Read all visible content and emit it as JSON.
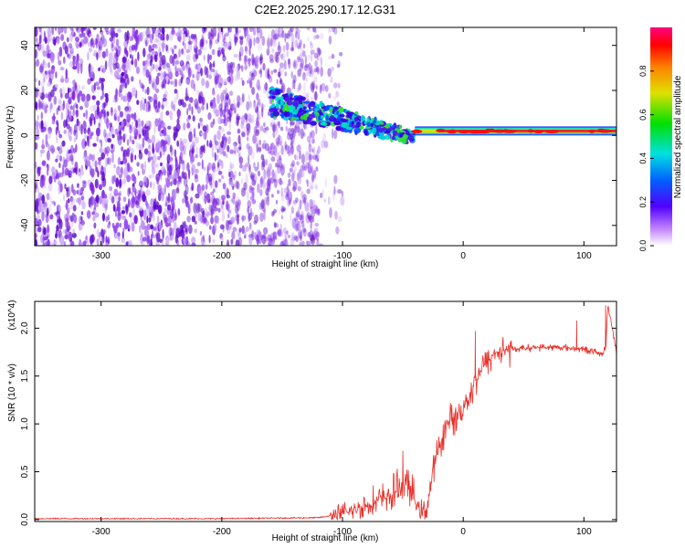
{
  "figure_title": "C2E2.2025.290.17.12.G31",
  "colors": {
    "snr_line": "#e8302a",
    "spectro_noise": "#7a1fe0",
    "axis": "#000000"
  },
  "chart_data": [
    {
      "type": "heatmap",
      "name": "spectrogram",
      "xlabel": "Height of straight line (km)",
      "ylabel": "Frequency (Hz)",
      "xlim": [
        -355,
        127
      ],
      "ylim": [
        -49,
        48
      ],
      "xticks": [
        -300,
        -200,
        -100,
        0,
        100
      ],
      "xtick_labels": [
        "-300",
        "-200",
        "-100",
        "0",
        "100"
      ],
      "yticks": [
        -40,
        -20,
        0,
        20,
        40
      ],
      "ytick_labels": [
        "-40",
        "-20",
        "0",
        "20",
        "40"
      ],
      "colorbar": {
        "label": "Normalized spectral amplitude",
        "range": [
          0,
          1
        ],
        "ticks": [
          0.0,
          0.2,
          0.4,
          0.6,
          0.8
        ],
        "tick_labels": [
          "0.0",
          "0.2",
          "0.4",
          "0.6",
          "0.8"
        ],
        "colormap": "rainbow (white-violet-blue-cyan-green-yellow-red-magenta)"
      },
      "features": [
        {
          "label": "broadband noise",
          "x_range": [
            -355,
            -120
          ],
          "freq_range": [
            -49,
            48
          ],
          "amplitude": 0.15
        },
        {
          "label": "scattered band",
          "x_range": [
            -160,
            -40
          ],
          "freq_center": [
            15,
            8,
            2,
            -2
          ],
          "amplitude": 0.4
        },
        {
          "label": "carrier line",
          "x_range": [
            -40,
            127
          ],
          "freq_center": 2,
          "amplitude": 0.95
        }
      ]
    },
    {
      "type": "line",
      "name": "snr",
      "xlabel": "Height of straight line (km)",
      "ylabel": "SNR (10 * v/v)",
      "y_multiplier": "(x10^4)",
      "xlim": [
        -355,
        127
      ],
      "ylim": [
        -0.02,
        2.28
      ],
      "xticks": [
        -300,
        -200,
        -100,
        0,
        100
      ],
      "xtick_labels": [
        "-300",
        "-200",
        "-100",
        "0",
        "100"
      ],
      "yticks": [
        0.0,
        0.5,
        1.0,
        1.5,
        2.0
      ],
      "ytick_labels": [
        "0.0",
        "0.5",
        "1.0",
        "1.5",
        "2.0"
      ],
      "series": [
        {
          "name": "SNR",
          "x": [
            -355,
            -300,
            -200,
            -120,
            -100,
            -90,
            -80,
            -70,
            -60,
            -55,
            -50,
            -45,
            -40,
            -35,
            -30,
            -25,
            -20,
            -15,
            -10,
            -5,
            0,
            5,
            10,
            15,
            20,
            25,
            30,
            40,
            60,
            80,
            100,
            110,
            115,
            118,
            120,
            127
          ],
          "y": [
            0.01,
            0.01,
            0.01,
            0.02,
            0.06,
            0.1,
            0.15,
            0.2,
            0.25,
            0.3,
            0.4,
            0.35,
            0.2,
            0.08,
            0.12,
            0.5,
            0.75,
            0.95,
            1.05,
            1.08,
            1.18,
            1.3,
            1.45,
            1.58,
            1.65,
            1.72,
            1.76,
            1.78,
            1.8,
            1.8,
            1.78,
            1.75,
            1.72,
            1.8,
            2.25,
            1.75
          ]
        }
      ],
      "annotations": [
        {
          "label": "spike",
          "x": 118,
          "y": 2.24
        },
        {
          "label": "spike",
          "x": 94,
          "y": 2.08
        },
        {
          "label": "spike",
          "x": 10,
          "y": 1.97
        },
        {
          "label": "spike",
          "x": -50,
          "y": 0.72
        }
      ]
    }
  ]
}
